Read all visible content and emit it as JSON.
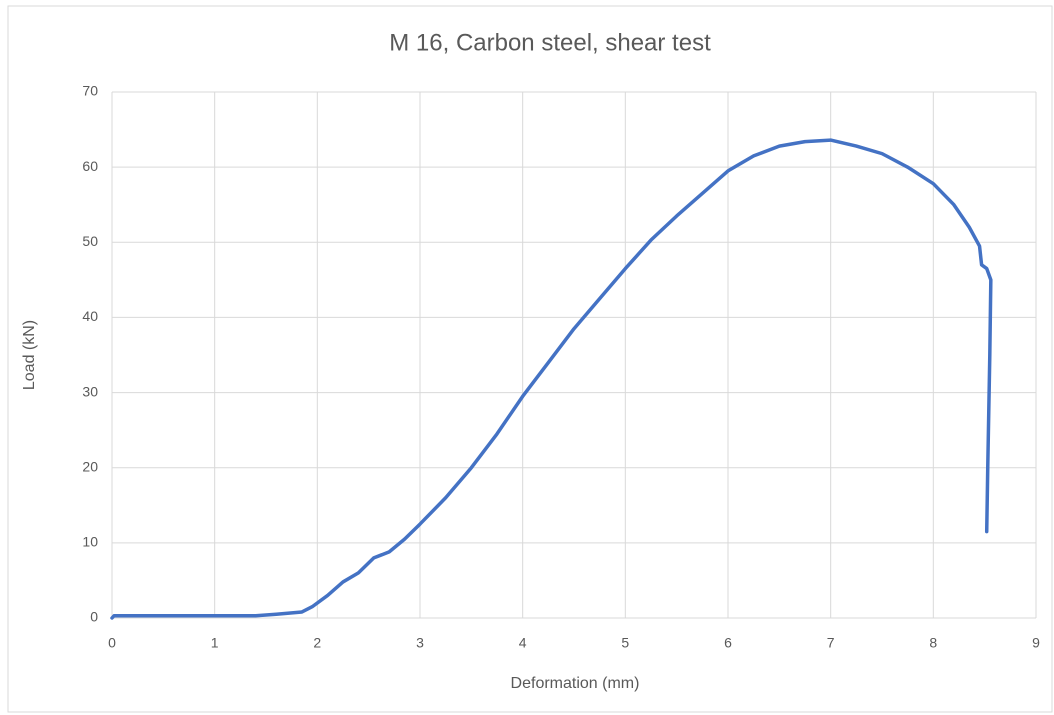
{
  "chart_data": {
    "type": "line",
    "title": "M 16, Carbon steel, shear test",
    "x_label": "Deformation (mm)",
    "y_label": "Load (kN)",
    "xlim": [
      0,
      9
    ],
    "xticks": [
      0,
      1,
      2,
      3,
      4,
      5,
      6,
      7,
      8,
      9
    ],
    "ylim": [
      0,
      70
    ],
    "yticks": [
      0,
      10,
      20,
      30,
      40,
      50,
      60,
      70
    ],
    "grid": true,
    "series": [
      {
        "color": "#4472c4",
        "x": [
          0,
          0.02,
          0.5,
          1,
          1.4,
          1.6,
          1.85,
          1.95,
          2.1,
          2.25,
          2.4,
          2.55,
          2.7,
          2.85,
          3,
          3.25,
          3.5,
          3.75,
          4,
          4.25,
          4.5,
          4.75,
          5,
          5.25,
          5.5,
          5.75,
          6,
          6.25,
          6.5,
          6.75,
          7,
          7.25,
          7.5,
          7.75,
          8,
          8.2,
          8.35,
          8.45,
          8.47,
          8.52,
          8.56,
          8.55,
          8.53,
          8.52
        ],
        "values": [
          0,
          0.3,
          0.3,
          0.3,
          0.3,
          0.5,
          0.8,
          1.5,
          3,
          4.8,
          6,
          8,
          8.8,
          10.5,
          12.5,
          16,
          20,
          24.5,
          29.5,
          34,
          38.5,
          42.5,
          46.5,
          50.3,
          53.5,
          56.5,
          59.5,
          61.5,
          62.8,
          63.4,
          63.6,
          62.8,
          61.8,
          60,
          57.8,
          55,
          52,
          49.5,
          47,
          46.5,
          45,
          35,
          20,
          11.5
        ]
      }
    ]
  }
}
